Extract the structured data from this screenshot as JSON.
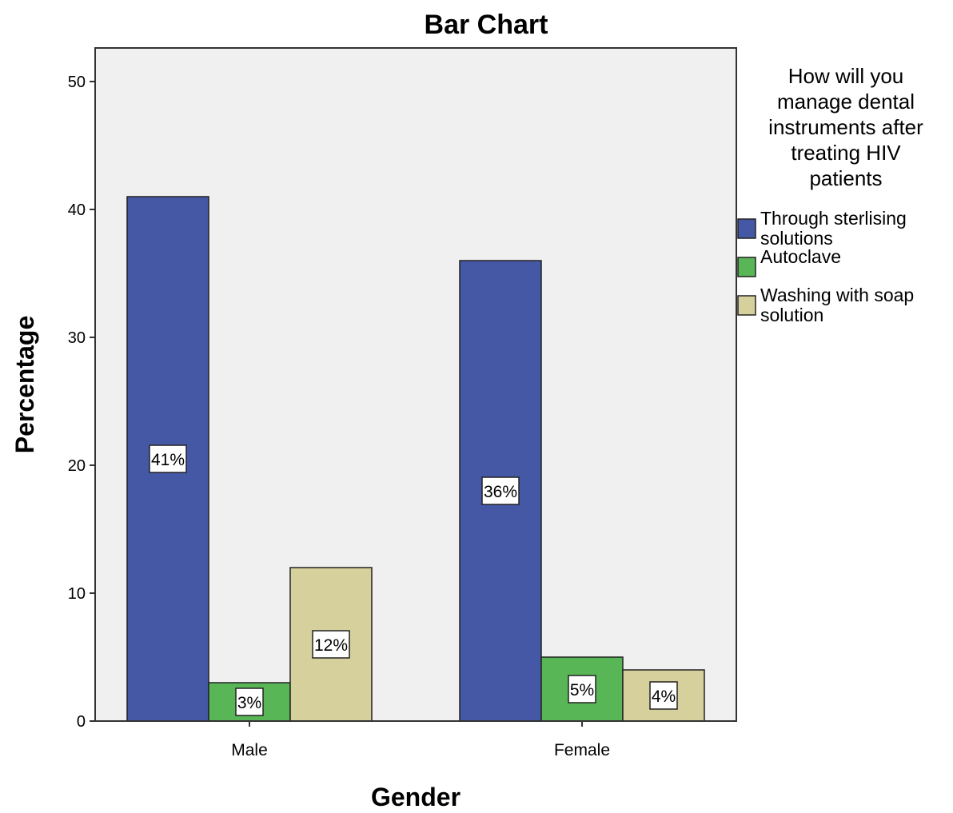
{
  "chart_data": {
    "type": "bar",
    "title": "Bar Chart",
    "xlabel": "Gender",
    "ylabel": "Percentage",
    "categories": [
      "Male",
      "Female"
    ],
    "ylim": [
      0,
      52
    ],
    "yticks": [
      0,
      10,
      20,
      30,
      40,
      50
    ],
    "grid": false,
    "legend": {
      "title": [
        "How will you",
        "manage dental",
        "instruments after",
        "treating HIV",
        "patients"
      ],
      "placement": "right"
    },
    "series": [
      {
        "name": "Through sterlising solutions",
        "legend_lines": [
          "Through sterlising",
          "solutions"
        ],
        "color": "#4558a6",
        "values": [
          41,
          36
        ],
        "labels": [
          "41%",
          "36%"
        ]
      },
      {
        "name": "Autoclave",
        "legend_lines": [
          "Autoclave"
        ],
        "color": "#58b656",
        "values": [
          3,
          5
        ],
        "labels": [
          "3%",
          "5%"
        ]
      },
      {
        "name": "Washing with soap solution",
        "legend_lines": [
          "Washing with soap",
          "solution"
        ],
        "color": "#d6d19c",
        "values": [
          12,
          4
        ],
        "labels": [
          "12%",
          "4%"
        ]
      }
    ]
  }
}
